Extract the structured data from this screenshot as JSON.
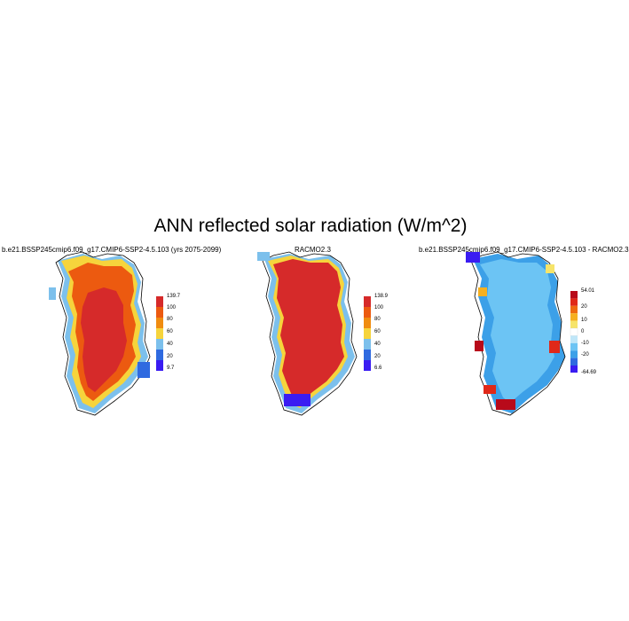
{
  "figure": {
    "title": "ANN reflected solar radiation (W/m^2)"
  },
  "panels": [
    {
      "title": "b.e21.BSSP245cmip6.f09_g17.CMIP6-SSP2-4.5.103 (yrs 2075-2099)",
      "kind": "model",
      "colorbar": {
        "colors": [
          "#3a1cf2",
          "#2f6ae0",
          "#7cc0ec",
          "#f6d43c",
          "#f08c10",
          "#ec5a10",
          "#d62a2a"
        ],
        "labels": [
          "139.7",
          "100",
          "80",
          "60",
          "40",
          "20",
          "9.7"
        ]
      }
    },
    {
      "title": "RACMO2.3",
      "kind": "obs",
      "colorbar": {
        "colors": [
          "#3a1cf2",
          "#2f6ae0",
          "#7cc0ec",
          "#f6d43c",
          "#f08c10",
          "#ec5a10",
          "#d62a2a"
        ],
        "labels": [
          "138.9",
          "100",
          "80",
          "60",
          "40",
          "20",
          "6.6"
        ]
      }
    },
    {
      "title": "b.e21.BSSP245cmip6.f09_g17.CMIP6-SSP2-4.5.103 - RACMO2.3",
      "kind": "diff",
      "colorbar": {
        "colors": [
          "#3a1cf2",
          "#2f6ae0",
          "#3ca0e8",
          "#6cc4f4",
          "#bfe6f8",
          "#ffffff",
          "#f6e46a",
          "#f6b020",
          "#ee6a10",
          "#e02818",
          "#b80a1a"
        ],
        "labels": [
          "54.01",
          "20",
          "10",
          "0",
          "-10",
          "-20",
          "-64.69"
        ]
      }
    }
  ]
}
